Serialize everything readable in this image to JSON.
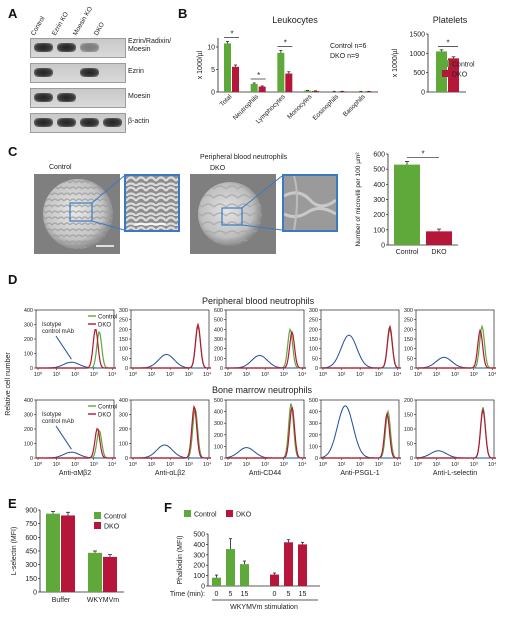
{
  "colors": {
    "control": "#5fa83a",
    "dko": "#b5163a",
    "isotype": "#1f4e9c",
    "zoom_frame": "#3a7ac2"
  },
  "panelA": {
    "letter": "A",
    "lanes": [
      "Control",
      "Ezrin KO",
      "Moesin KO",
      "DKO"
    ],
    "rows": [
      {
        "label": "Ezrin/Radixin/\nMoesin",
        "bands": [
          1,
          1,
          0.5,
          0
        ]
      },
      {
        "label": "Ezrin",
        "bands": [
          1,
          0,
          1,
          0
        ]
      },
      {
        "label": "Moesin",
        "bands": [
          1,
          1,
          0,
          0
        ]
      },
      {
        "label": "β-actin",
        "bands": [
          1,
          1,
          1,
          1
        ]
      }
    ]
  },
  "panelB": {
    "letter": "B",
    "leuko_title": "Leukocytes",
    "plate_title": "Platelets",
    "leuko_ylabel": "x 1000/µl",
    "plate_ylabel": "x 1000/µl",
    "n_control": "Control n=6",
    "n_dko": "DKO n=9",
    "legend": [
      "Control",
      "DKO"
    ],
    "star": "*"
  },
  "panelC": {
    "letter": "C",
    "title": "Peripheral blood neutrophils",
    "label_control": "Control",
    "label_dko": "DKO",
    "ylabel": "Number of microvilli per 100 µm²",
    "star": "*"
  },
  "panelD": {
    "letter": "D",
    "row1_title": "Peripheral blood neutrophils",
    "row2_title": "Bone marrow neutrophils",
    "ylabel": "Relative cell number",
    "isotype_label": "Isotype\ncontrol mAb",
    "legend": [
      "Control",
      "DKO"
    ],
    "xlabels": [
      "Anti-αMβ2",
      "Anti-αLβ2",
      "Anti-CD44",
      "Anti-PSGL-1",
      "Anti-L-selectin"
    ],
    "xticks": [
      "10⁰",
      "10¹",
      "10²",
      "10³",
      "10⁴"
    ]
  },
  "panelE": {
    "letter": "E",
    "ylabel": "L-selectin (MFI)",
    "legend": [
      "Control",
      "DKO"
    ]
  },
  "panelF": {
    "letter": "F",
    "ylabel": "Phalloidin (MFI)",
    "legend": [
      "Control",
      "DKO"
    ],
    "time_label": "Time (min):",
    "stim_label": "WKYMVm stimulation"
  },
  "chart_data": [
    {
      "id": "B-leukocytes",
      "type": "bar",
      "title": "Leukocytes",
      "ylabel": "x 1000/µl",
      "ylim": [
        0,
        12
      ],
      "yticks": [
        0,
        5,
        10
      ],
      "categories": [
        "Total",
        "Neutrophils",
        "Lymphocytes",
        "Monocytes",
        "Eosinophils",
        "Basophils"
      ],
      "series": [
        {
          "name": "Control",
          "values": [
            10.8,
            1.8,
            8.7,
            0.3,
            0.1,
            0.02
          ],
          "errors": [
            0.4,
            0.2,
            0.5,
            0.05,
            0.02,
            0.01
          ]
        },
        {
          "name": "DKO",
          "values": [
            5.6,
            1.2,
            4.1,
            0.2,
            0.08,
            0.01
          ],
          "errors": [
            0.4,
            0.15,
            0.4,
            0.05,
            0.02,
            0.01
          ]
        }
      ],
      "significance": [
        "Total",
        "Neutrophils",
        "Lymphocytes"
      ]
    },
    {
      "id": "B-platelets",
      "type": "bar",
      "title": "Platelets",
      "ylabel": "x 1000/µl",
      "ylim": [
        0,
        1500
      ],
      "yticks": [
        0,
        500,
        1000,
        1500
      ],
      "categories": [
        ""
      ],
      "series": [
        {
          "name": "Control",
          "values": [
            1050
          ],
          "errors": [
            40
          ]
        },
        {
          "name": "DKO",
          "values": [
            870
          ],
          "errors": [
            40
          ]
        }
      ],
      "significance": [
        ""
      ]
    },
    {
      "id": "C-microvilli",
      "type": "bar",
      "ylabel": "Number of microvilli per 100 µm²",
      "ylim": [
        0,
        600
      ],
      "yticks": [
        0,
        100,
        200,
        300,
        400,
        500,
        600
      ],
      "categories": [
        "Control",
        "DKO"
      ],
      "values": [
        530,
        90
      ],
      "errors": [
        20,
        15
      ]
    },
    {
      "id": "D-histograms",
      "type": "line",
      "xscale": "log",
      "xlim": [
        1,
        100000
      ],
      "x": [
        "10⁰",
        "10¹",
        "10²",
        "10³",
        "10⁴"
      ],
      "panels": [
        {
          "row": "Peripheral blood neutrophils",
          "xlabel": "Anti-αMβ2",
          "ylim": [
            0,
            400
          ],
          "yticks": [
            0,
            100,
            200,
            300,
            400
          ],
          "peaks": {
            "Isotype": [
              1.8,
              40
            ],
            "Control": [
              3.3,
              250
            ],
            "DKO": [
              3.1,
              270
            ]
          }
        },
        {
          "row": "Peripheral blood neutrophils",
          "xlabel": "Anti-αLβ2",
          "ylim": [
            0,
            300
          ],
          "yticks": [
            0,
            50,
            100,
            150,
            200,
            250,
            300
          ],
          "peaks": {
            "Isotype": [
              1.8,
              70
            ],
            "Control": [
              3.5,
              215
            ],
            "DKO": [
              3.5,
              225
            ]
          }
        },
        {
          "row": "Peripheral blood neutrophils",
          "xlabel": "Anti-CD44",
          "ylim": [
            0,
            600
          ],
          "yticks": [
            0,
            100,
            200,
            300,
            400,
            500,
            600
          ],
          "peaks": {
            "Isotype": [
              1.7,
              130
            ],
            "Control": [
              3.35,
              400
            ],
            "DKO": [
              3.45,
              370
            ]
          }
        },
        {
          "row": "Peripheral blood neutrophils",
          "xlabel": "Anti-PSGL-1",
          "ylim": [
            0,
            300
          ],
          "yticks": [
            0,
            50,
            100,
            150,
            200,
            250,
            300
          ],
          "peaks": {
            "Isotype": [
              1.4,
              170
            ],
            "Control": [
              3.6,
              200
            ],
            "DKO": [
              3.6,
              215
            ]
          }
        },
        {
          "row": "Peripheral blood neutrophils",
          "xlabel": "Anti-L-selectin",
          "ylim": [
            0,
            300
          ],
          "yticks": [
            0,
            50,
            100,
            150,
            200,
            250,
            300
          ],
          "peaks": {
            "Isotype": [
              1.4,
              55
            ],
            "Control": [
              3.45,
              215
            ],
            "DKO": [
              3.35,
              195
            ]
          }
        },
        {
          "row": "Bone marrow neutrophils",
          "xlabel": "Anti-αMβ2",
          "ylim": [
            0,
            400
          ],
          "yticks": [
            0,
            100,
            200,
            300,
            400
          ],
          "peaks": {
            "Isotype": [
              1.8,
              40
            ],
            "Control": [
              3.3,
              190
            ],
            "DKO": [
              3.2,
              205
            ]
          }
        },
        {
          "row": "Bone marrow neutrophils",
          "xlabel": "Anti-αLβ2",
          "ylim": [
            0,
            400
          ],
          "yticks": [
            0,
            100,
            200,
            300,
            400
          ],
          "peaks": {
            "Isotype": [
              1.7,
              90
            ],
            "Control": [
              3.35,
              340
            ],
            "DKO": [
              3.3,
              355
            ]
          }
        },
        {
          "row": "Bone marrow neutrophils",
          "xlabel": "Anti-CD44",
          "ylim": [
            0,
            500
          ],
          "yticks": [
            0,
            100,
            200,
            300,
            400,
            500
          ],
          "peaks": {
            "Isotype": [
              1.0,
              90
            ],
            "Control": [
              3.4,
              470
            ],
            "DKO": [
              3.45,
              440
            ]
          }
        },
        {
          "row": "Bone marrow neutrophils",
          "xlabel": "Anti-PSGL-1",
          "ylim": [
            0,
            500
          ],
          "yticks": [
            0,
            100,
            200,
            300,
            400,
            500
          ],
          "peaks": {
            "Isotype": [
              1.2,
              450
            ],
            "Control": [
              3.5,
              400
            ],
            "DKO": [
              3.45,
              380
            ]
          }
        },
        {
          "row": "Bone marrow neutrophils",
          "xlabel": "Anti-L-selectin",
          "ylim": [
            0,
            200
          ],
          "yticks": [
            0,
            50,
            100,
            150,
            200
          ],
          "peaks": {
            "Isotype": [
              1.1,
              25
            ],
            "Control": [
              3.5,
              175
            ],
            "DKO": [
              3.5,
              165
            ]
          }
        }
      ]
    },
    {
      "id": "E-lselectin",
      "type": "bar",
      "ylabel": "L-selectin (MFI)",
      "ylim": [
        0,
        900
      ],
      "yticks": [
        0,
        150,
        300,
        450,
        600,
        750,
        900
      ],
      "categories": [
        "Buffer",
        "WKYMVm"
      ],
      "series": [
        {
          "name": "Control",
          "values": [
            860,
            430
          ],
          "errors": [
            25,
            20
          ]
        },
        {
          "name": "DKO",
          "values": [
            840,
            385
          ],
          "errors": [
            35,
            25
          ]
        }
      ]
    },
    {
      "id": "F-phalloidin",
      "type": "bar",
      "ylabel": "Phalloidin (MFI)",
      "ylim": [
        0,
        500
      ],
      "yticks": [
        0,
        100,
        200,
        300,
        400,
        500
      ],
      "xlabel": "WKYMVm stimulation",
      "categories": [
        "0",
        "5",
        "15"
      ],
      "series": [
        {
          "name": "Control",
          "values": [
            80,
            355,
            210
          ],
          "errors": [
            25,
            100,
            30
          ]
        },
        {
          "name": "DKO",
          "values": [
            110,
            420,
            400
          ],
          "errors": [
            15,
            25,
            20
          ]
        }
      ]
    }
  ]
}
